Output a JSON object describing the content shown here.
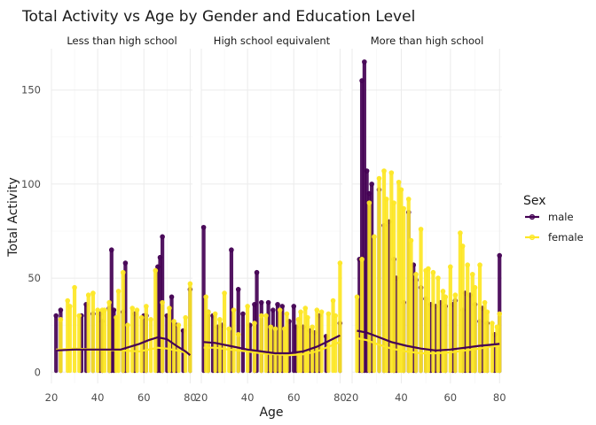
{
  "chart_data": {
    "type": "scatter",
    "title": "Total Activity vs Age by Gender and Education Level",
    "xlabel": "Age",
    "ylabel": "Total Activity",
    "xlim": [
      20,
      81
    ],
    "ylim": [
      -6,
      172
    ],
    "x_ticks": [
      20,
      40,
      60,
      80
    ],
    "y_ticks": [
      0,
      50,
      100,
      150
    ],
    "grid": true,
    "legend": {
      "title": "Sex",
      "placement": "right"
    },
    "colors": {
      "male": "#440154",
      "female": "#fde725"
    },
    "series_names": [
      "male",
      "female"
    ],
    "panels": [
      {
        "label": "Less than high school",
        "male_bars": [
          [
            22,
            30
          ],
          [
            24,
            33
          ],
          [
            33,
            30
          ],
          [
            35,
            36
          ],
          [
            38,
            31
          ],
          [
            41,
            31
          ],
          [
            42,
            27
          ],
          [
            45,
            34
          ],
          [
            46,
            65
          ],
          [
            47,
            33
          ],
          [
            51,
            32
          ],
          [
            52,
            58
          ],
          [
            56,
            31
          ],
          [
            60,
            30
          ],
          [
            61,
            30
          ],
          [
            66,
            56
          ],
          [
            67,
            61
          ],
          [
            68,
            72
          ],
          [
            70,
            30
          ],
          [
            72,
            40
          ],
          [
            74,
            25
          ],
          [
            77,
            22
          ],
          [
            80,
            44
          ]
        ],
        "female_bars": [
          [
            24,
            28
          ],
          [
            27,
            38
          ],
          [
            28,
            35
          ],
          [
            30,
            45
          ],
          [
            32,
            30
          ],
          [
            36,
            41
          ],
          [
            38,
            42
          ],
          [
            40,
            33
          ],
          [
            42,
            33
          ],
          [
            43,
            33
          ],
          [
            45,
            37
          ],
          [
            48,
            29
          ],
          [
            49,
            43
          ],
          [
            51,
            53
          ],
          [
            53,
            25
          ],
          [
            55,
            34
          ],
          [
            57,
            33
          ],
          [
            59,
            29
          ],
          [
            61,
            35
          ],
          [
            63,
            28
          ],
          [
            65,
            54
          ],
          [
            68,
            37
          ],
          [
            71,
            34
          ],
          [
            73,
            27
          ],
          [
            75,
            25
          ],
          [
            78,
            29
          ],
          [
            80,
            47
          ]
        ],
        "male_trend": [
          [
            22,
            11.5
          ],
          [
            30,
            12
          ],
          [
            40,
            12
          ],
          [
            50,
            12
          ],
          [
            58,
            15
          ],
          [
            62,
            17
          ],
          [
            66,
            18.5
          ],
          [
            70,
            17.5
          ],
          [
            74,
            14
          ],
          [
            78,
            11
          ],
          [
            80,
            9
          ]
        ],
        "female_trend": [
          [
            22,
            12
          ],
          [
            30,
            12.5
          ],
          [
            40,
            12
          ],
          [
            50,
            11.5
          ],
          [
            58,
            11
          ],
          [
            62,
            12
          ],
          [
            66,
            13
          ],
          [
            70,
            12.5
          ],
          [
            74,
            11.5
          ],
          [
            78,
            10.5
          ],
          [
            80,
            10
          ]
        ]
      },
      {
        "label": "High school equivalent",
        "male_bars": [
          [
            21,
            77
          ],
          [
            23,
            32
          ],
          [
            25,
            30
          ],
          [
            27,
            24
          ],
          [
            29,
            25
          ],
          [
            33,
            65
          ],
          [
            36,
            44
          ],
          [
            38,
            31
          ],
          [
            41,
            25
          ],
          [
            43,
            36
          ],
          [
            44,
            53
          ],
          [
            46,
            37
          ],
          [
            49,
            37
          ],
          [
            51,
            33
          ],
          [
            53,
            36
          ],
          [
            55,
            35
          ],
          [
            58,
            27
          ],
          [
            60,
            35
          ],
          [
            61,
            24
          ],
          [
            64,
            24
          ],
          [
            67,
            22
          ],
          [
            69,
            21
          ],
          [
            71,
            30
          ],
          [
            74,
            19
          ],
          [
            80,
            26
          ]
        ],
        "female_bars": [
          [
            22,
            40
          ],
          [
            23,
            32
          ],
          [
            26,
            31
          ],
          [
            28,
            28
          ],
          [
            30,
            42
          ],
          [
            32,
            23
          ],
          [
            34,
            33
          ],
          [
            36,
            20
          ],
          [
            40,
            35
          ],
          [
            43,
            26
          ],
          [
            46,
            30
          ],
          [
            48,
            30
          ],
          [
            50,
            24
          ],
          [
            52,
            23
          ],
          [
            54,
            33
          ],
          [
            56,
            23
          ],
          [
            57,
            31
          ],
          [
            62,
            28
          ],
          [
            63,
            32
          ],
          [
            65,
            34
          ],
          [
            66,
            29
          ],
          [
            68,
            24
          ],
          [
            70,
            33
          ],
          [
            72,
            32
          ],
          [
            75,
            31
          ],
          [
            77,
            38
          ],
          [
            78,
            30
          ],
          [
            80,
            58
          ]
        ],
        "male_trend": [
          [
            21,
            16
          ],
          [
            26,
            15.5
          ],
          [
            32,
            14
          ],
          [
            40,
            12
          ],
          [
            46,
            11
          ],
          [
            52,
            10
          ],
          [
            58,
            10
          ],
          [
            64,
            11
          ],
          [
            70,
            13.5
          ],
          [
            75,
            16.5
          ],
          [
            80,
            19.5
          ]
        ],
        "female_trend": [
          [
            21,
            13
          ],
          [
            26,
            13
          ],
          [
            32,
            12
          ],
          [
            40,
            11
          ],
          [
            46,
            10
          ],
          [
            52,
            9.5
          ],
          [
            58,
            9
          ],
          [
            64,
            9.5
          ],
          [
            70,
            11
          ],
          [
            75,
            13.5
          ],
          [
            80,
            16
          ]
        ]
      },
      {
        "label": "More than high school",
        "male_bars": [
          [
            23,
            60
          ],
          [
            24,
            155
          ],
          [
            25,
            165
          ],
          [
            26,
            107
          ],
          [
            27,
            95
          ],
          [
            28,
            100
          ],
          [
            31,
            97
          ],
          [
            33,
            78
          ],
          [
            35,
            80
          ],
          [
            37,
            60
          ],
          [
            38,
            50
          ],
          [
            41,
            37
          ],
          [
            43,
            85
          ],
          [
            45,
            57
          ],
          [
            46,
            49
          ],
          [
            48,
            45
          ],
          [
            50,
            39
          ],
          [
            52,
            36
          ],
          [
            54,
            35
          ],
          [
            56,
            37
          ],
          [
            58,
            35
          ],
          [
            61,
            36
          ],
          [
            62,
            38
          ],
          [
            65,
            33
          ],
          [
            66,
            42
          ],
          [
            68,
            41
          ],
          [
            70,
            36
          ],
          [
            72,
            27
          ],
          [
            73,
            34
          ],
          [
            75,
            26
          ],
          [
            78,
            20
          ],
          [
            80,
            62
          ]
        ],
        "female_bars": [
          [
            22,
            40
          ],
          [
            24,
            60
          ],
          [
            27,
            90
          ],
          [
            29,
            72
          ],
          [
            31,
            103
          ],
          [
            33,
            107
          ],
          [
            34,
            92
          ],
          [
            36,
            106
          ],
          [
            37,
            90
          ],
          [
            39,
            101
          ],
          [
            40,
            97
          ],
          [
            41,
            87
          ],
          [
            43,
            92
          ],
          [
            44,
            70
          ],
          [
            46,
            52
          ],
          [
            48,
            76
          ],
          [
            50,
            54
          ],
          [
            51,
            55
          ],
          [
            53,
            53
          ],
          [
            55,
            50
          ],
          [
            57,
            43
          ],
          [
            58,
            40
          ],
          [
            60,
            56
          ],
          [
            62,
            41
          ],
          [
            64,
            74
          ],
          [
            65,
            67
          ],
          [
            67,
            57
          ],
          [
            69,
            52
          ],
          [
            70,
            45
          ],
          [
            72,
            57
          ],
          [
            74,
            37
          ],
          [
            75,
            32
          ],
          [
            77,
            26
          ],
          [
            79,
            24
          ],
          [
            80,
            31
          ]
        ],
        "male_trend": [
          [
            22,
            22
          ],
          [
            26,
            21
          ],
          [
            30,
            19
          ],
          [
            36,
            16
          ],
          [
            42,
            14
          ],
          [
            48,
            12.5
          ],
          [
            54,
            11.5
          ],
          [
            60,
            12
          ],
          [
            66,
            13
          ],
          [
            72,
            14
          ],
          [
            76,
            14.5
          ],
          [
            80,
            15
          ]
        ],
        "female_trend": [
          [
            22,
            18
          ],
          [
            26,
            17
          ],
          [
            30,
            15
          ],
          [
            36,
            12.5
          ],
          [
            42,
            11
          ],
          [
            48,
            10
          ],
          [
            54,
            10
          ],
          [
            60,
            10.5
          ],
          [
            66,
            11.5
          ],
          [
            72,
            12.5
          ],
          [
            76,
            13.5
          ],
          [
            80,
            14
          ]
        ]
      }
    ]
  }
}
